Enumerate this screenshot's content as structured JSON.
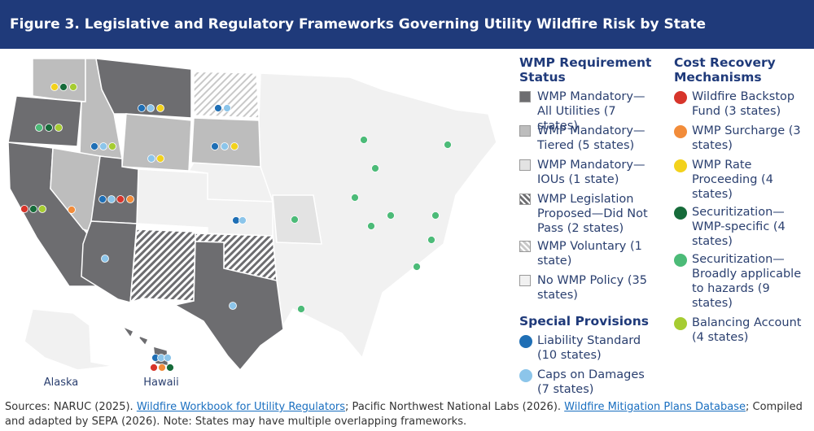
{
  "header": {
    "title": "Figure 3. Legislative and Regulatory Frameworks Governing Utility Wildfire Risk by State"
  },
  "legend": {
    "wmp_status": {
      "title": "WMP Requirement Status",
      "items": [
        {
          "label": "WMP Mandatory—All Utilities (7 states)",
          "fill": "#6d6d70",
          "hatch": false
        },
        {
          "label": "WMP Mandatory—Tiered (5 states)",
          "fill": "#bdbdbd",
          "hatch": false
        },
        {
          "label": "WMP Mandatory—IOUs (1 state)",
          "fill": "#e3e3e3",
          "hatch": false
        },
        {
          "label": "WMP Legislation Proposed—Did Not Pass (2 states)",
          "fill": "#6d6d70",
          "hatch": true
        },
        {
          "label": "WMP Voluntary (1 state)",
          "fill": "#c8c8c8",
          "hatch": true
        },
        {
          "label": "No WMP Policy (35 states)",
          "fill": "#f1f1f1",
          "hatch": false
        }
      ]
    },
    "special_provisions": {
      "title": "Special Provisions",
      "items": [
        {
          "label": "Liability Standard (10 states)",
          "color": "#1f6fb5"
        },
        {
          "label": "Caps on Damages (7 states)",
          "color": "#8cc5ea"
        }
      ]
    },
    "cost_recovery": {
      "title": "Cost Recovery Mechanisms",
      "items": [
        {
          "label": "Wildfire Backstop Fund (3 states)",
          "color": "#d7352b"
        },
        {
          "label": "WMP Surcharge (3 states)",
          "color": "#f28c3a"
        },
        {
          "label": "WMP Rate Proceeding (4 states)",
          "color": "#f3d21c"
        },
        {
          "label": "Securitization—WMP-specific (4 states)",
          "color": "#166b3a"
        },
        {
          "label": "Securitization—Broadly applicable to hazards (9 states)",
          "color": "#4cbb78"
        },
        {
          "label": "Balancing Account (4 states)",
          "color": "#a6cc32"
        }
      ]
    }
  },
  "map_labels": {
    "alaska": "Alaska",
    "hawaii": "Hawaii"
  },
  "sources": {
    "part1": "Sources: NARUC (2025). ",
    "link1": "Wildfire Workbook for Utility Regulators",
    "part2": "; Pacific Northwest National Labs (2026). ",
    "link2": "Wildfire Mitigation Plans Database",
    "part3": "; Compiled and adapted by SEPA (2026). Note: States may have multiple overlapping frameworks."
  }
}
